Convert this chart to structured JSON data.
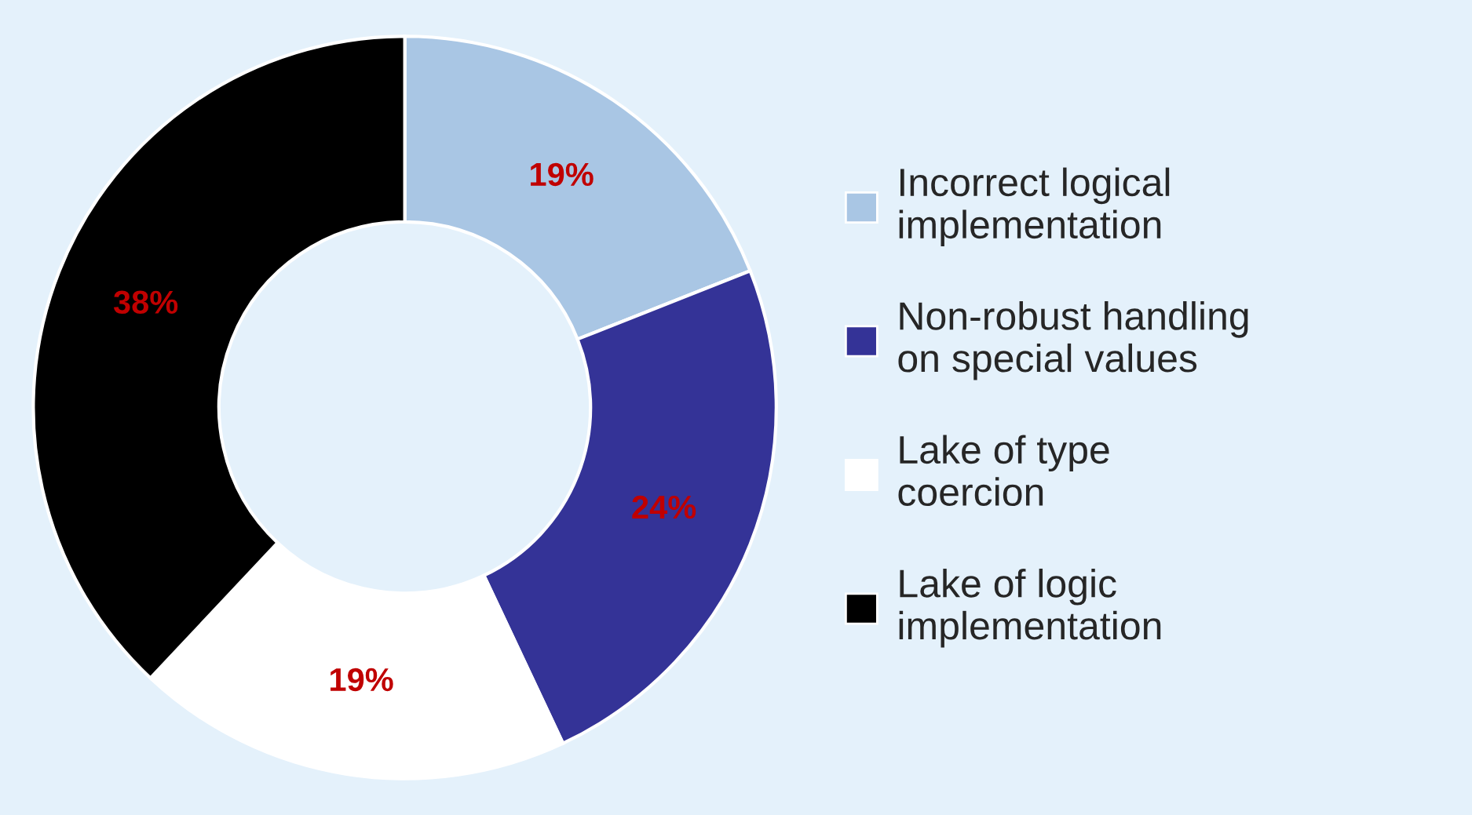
{
  "chart_data": {
    "type": "donut",
    "categories": [
      "Incorrect logical\nimplementation",
      "Non-robust handling\non special values",
      "Lake of type\ncoercion",
      "Lake of logic\nimplementation"
    ],
    "values": [
      19,
      24,
      19,
      38
    ],
    "colors": [
      "#a9c6e4",
      "#343397",
      "#ffffff",
      "#000000"
    ],
    "value_labels": [
      "19%",
      "24%",
      "19%",
      "38%"
    ],
    "legend": "right"
  }
}
